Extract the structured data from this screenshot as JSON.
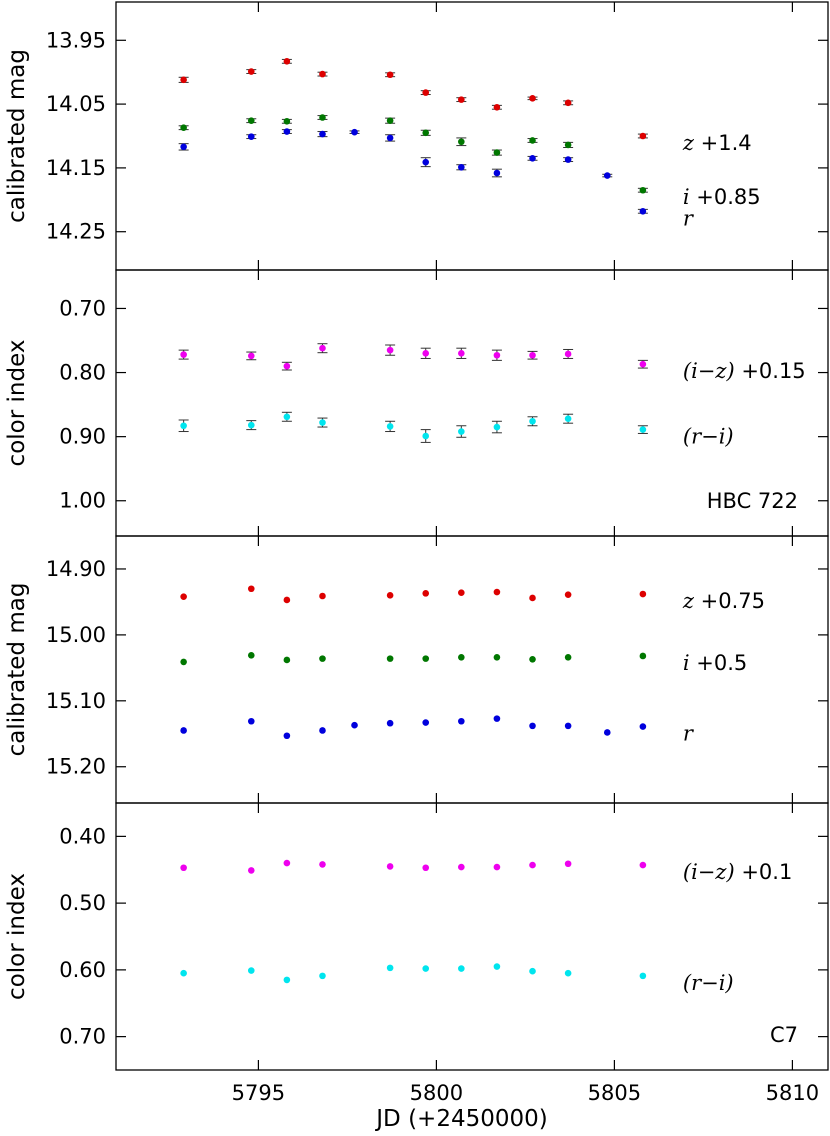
{
  "chart_data": {
    "type": "scatter",
    "xlabel": "JD (+2450000)",
    "xlim": [
      5791.0,
      5811.0
    ],
    "xticks": [
      5795,
      5800,
      5805,
      5810
    ],
    "panels": [
      {
        "ylabel": "calibrated mag",
        "ylim": [
          13.89,
          14.31
        ],
        "yticks": [
          13.95,
          14.05,
          14.15,
          14.25
        ],
        "inverted": true,
        "series": [
          {
            "name": "z",
            "offset": "+1.4",
            "color": "#dd0000",
            "x": [
              5792.9,
              5794.8,
              5795.8,
              5796.8,
              5798.7,
              5799.7,
              5800.7,
              5801.7,
              5802.7,
              5803.7
            ],
            "y": [
              14.012,
              13.999,
              13.983,
              14.003,
              14.004,
              14.032,
              14.043,
              14.055,
              14.041,
              14.048
            ],
            "err": [
              0.004,
              0.003,
              0.003,
              0.003,
              0.003,
              0.003,
              0.003,
              0.003,
              0.002,
              0.003
            ],
            "legend_x": 5805.8,
            "legend_y": 14.1,
            "legend_err": 0.003
          },
          {
            "name": "i",
            "offset": "+0.85",
            "color": "#007700",
            "x": [
              5792.9,
              5794.8,
              5795.8,
              5796.8,
              5798.7,
              5799.7,
              5800.7,
              5801.7,
              5802.7,
              5803.7
            ],
            "y": [
              14.087,
              14.076,
              14.077,
              14.071,
              14.076,
              14.095,
              14.109,
              14.126,
              14.107,
              14.114
            ],
            "err": [
              0.003,
              0.003,
              0.003,
              0.003,
              0.004,
              0.004,
              0.006,
              0.004,
              0.003,
              0.004
            ],
            "legend_x": 5805.8,
            "legend_y": 14.185,
            "legend_err": 0.003
          },
          {
            "name": "r",
            "offset": "",
            "color": "#0000dd",
            "x": [
              5792.9,
              5794.8,
              5795.8,
              5796.8,
              5797.7,
              5798.7,
              5799.7,
              5800.7,
              5801.7,
              5802.7,
              5803.7,
              5804.8
            ],
            "y": [
              14.117,
              14.101,
              14.093,
              14.097,
              14.094,
              14.103,
              14.141,
              14.149,
              14.158,
              14.135,
              14.137,
              14.162
            ],
            "err": [
              0.005,
              0.003,
              0.003,
              0.004,
              0.002,
              0.005,
              0.007,
              0.004,
              0.006,
              0.003,
              0.003,
              0.002
            ],
            "legend_x": 5805.8,
            "legend_y": 14.218,
            "legend_err": 0.003
          }
        ]
      },
      {
        "ylabel": "color index",
        "ylim": [
          0.64,
          1.055
        ],
        "yticks": [
          0.7,
          0.8,
          0.9,
          1.0
        ],
        "inverted": true,
        "annotation": "HBC 722",
        "series": [
          {
            "name": "(i−z)",
            "offset": "+0.15",
            "color": "#ee00ee",
            "x": [
              5792.9,
              5794.8,
              5795.8,
              5796.8,
              5798.7,
              5799.7,
              5800.7,
              5801.7,
              5802.7,
              5803.7
            ],
            "y": [
              0.772,
              0.774,
              0.79,
              0.762,
              0.765,
              0.77,
              0.77,
              0.773,
              0.773,
              0.771
            ],
            "err": [
              0.007,
              0.006,
              0.006,
              0.007,
              0.008,
              0.008,
              0.008,
              0.008,
              0.006,
              0.007
            ],
            "legend_x": 5805.8,
            "legend_y": 0.787,
            "legend_err": 0.006
          },
          {
            "name": "(r−i)",
            "offset": "",
            "color": "#00e5ee",
            "x": [
              5792.9,
              5794.8,
              5795.8,
              5796.8,
              5798.7,
              5799.7,
              5800.7,
              5801.7,
              5802.7,
              5803.7
            ],
            "y": [
              0.883,
              0.882,
              0.869,
              0.878,
              0.884,
              0.899,
              0.892,
              0.885,
              0.876,
              0.872
            ],
            "err": [
              0.009,
              0.007,
              0.007,
              0.007,
              0.008,
              0.01,
              0.009,
              0.009,
              0.007,
              0.007
            ],
            "legend_x": 5805.8,
            "legend_y": 0.889,
            "legend_err": 0.006
          }
        ]
      },
      {
        "ylabel": "calibrated mag",
        "ylim": [
          14.85,
          15.255
        ],
        "yticks": [
          14.9,
          15.0,
          15.1,
          15.2
        ],
        "inverted": true,
        "series": [
          {
            "name": "z",
            "offset": "+0.75",
            "color": "#dd0000",
            "x": [
              5792.9,
              5794.8,
              5795.8,
              5796.8,
              5798.7,
              5799.7,
              5800.7,
              5801.7,
              5802.7,
              5803.7,
              5805.8
            ],
            "y": [
              14.942,
              14.93,
              14.947,
              14.941,
              14.94,
              14.937,
              14.936,
              14.935,
              14.944,
              14.939,
              14.938
            ],
            "legend_x": 5805.8,
            "legend_y": 14.938
          },
          {
            "name": "i",
            "offset": "+0.5",
            "color": "#007700",
            "x": [
              5792.9,
              5794.8,
              5795.8,
              5796.8,
              5798.7,
              5799.7,
              5800.7,
              5801.7,
              5802.7,
              5803.7,
              5805.8
            ],
            "y": [
              15.041,
              15.031,
              15.038,
              15.036,
              15.036,
              15.036,
              15.034,
              15.034,
              15.037,
              15.034,
              15.032
            ],
            "legend_x": 5805.8,
            "legend_y": 15.032
          },
          {
            "name": "r",
            "offset": "",
            "color": "#0000dd",
            "x": [
              5792.9,
              5794.8,
              5795.8,
              5796.8,
              5797.7,
              5798.7,
              5799.7,
              5800.7,
              5801.7,
              5802.7,
              5803.7,
              5804.8,
              5805.8
            ],
            "y": [
              15.145,
              15.131,
              15.153,
              15.145,
              15.137,
              15.134,
              15.133,
              15.131,
              15.127,
              15.138,
              15.138,
              15.148,
              15.139
            ],
            "legend_x": 5805.8,
            "legend_y": 15.139
          }
        ]
      },
      {
        "ylabel": "color index",
        "ylim": [
          0.35,
          0.75
        ],
        "yticks": [
          0.4,
          0.5,
          0.6,
          0.7
        ],
        "inverted": true,
        "annotation": "C7",
        "series": [
          {
            "name": "(i−z)",
            "offset": "+0.1",
            "color": "#ee00ee",
            "x": [
              5792.9,
              5794.8,
              5795.8,
              5796.8,
              5798.7,
              5799.7,
              5800.7,
              5801.7,
              5802.7,
              5803.7,
              5805.8
            ],
            "y": [
              0.447,
              0.451,
              0.44,
              0.442,
              0.445,
              0.447,
              0.446,
              0.446,
              0.443,
              0.441,
              0.443
            ],
            "legend_x": 5805.8,
            "legend_y": 0.443
          },
          {
            "name": "(r−i)",
            "offset": "",
            "color": "#00e5ee",
            "x": [
              5792.9,
              5794.8,
              5795.8,
              5796.8,
              5798.7,
              5799.7,
              5800.7,
              5801.7,
              5802.7,
              5803.7,
              5805.8
            ],
            "y": [
              0.605,
              0.601,
              0.615,
              0.609,
              0.597,
              0.598,
              0.598,
              0.595,
              0.602,
              0.605,
              0.609
            ],
            "legend_x": 5805.8,
            "legend_y": 0.609
          }
        ]
      }
    ]
  }
}
